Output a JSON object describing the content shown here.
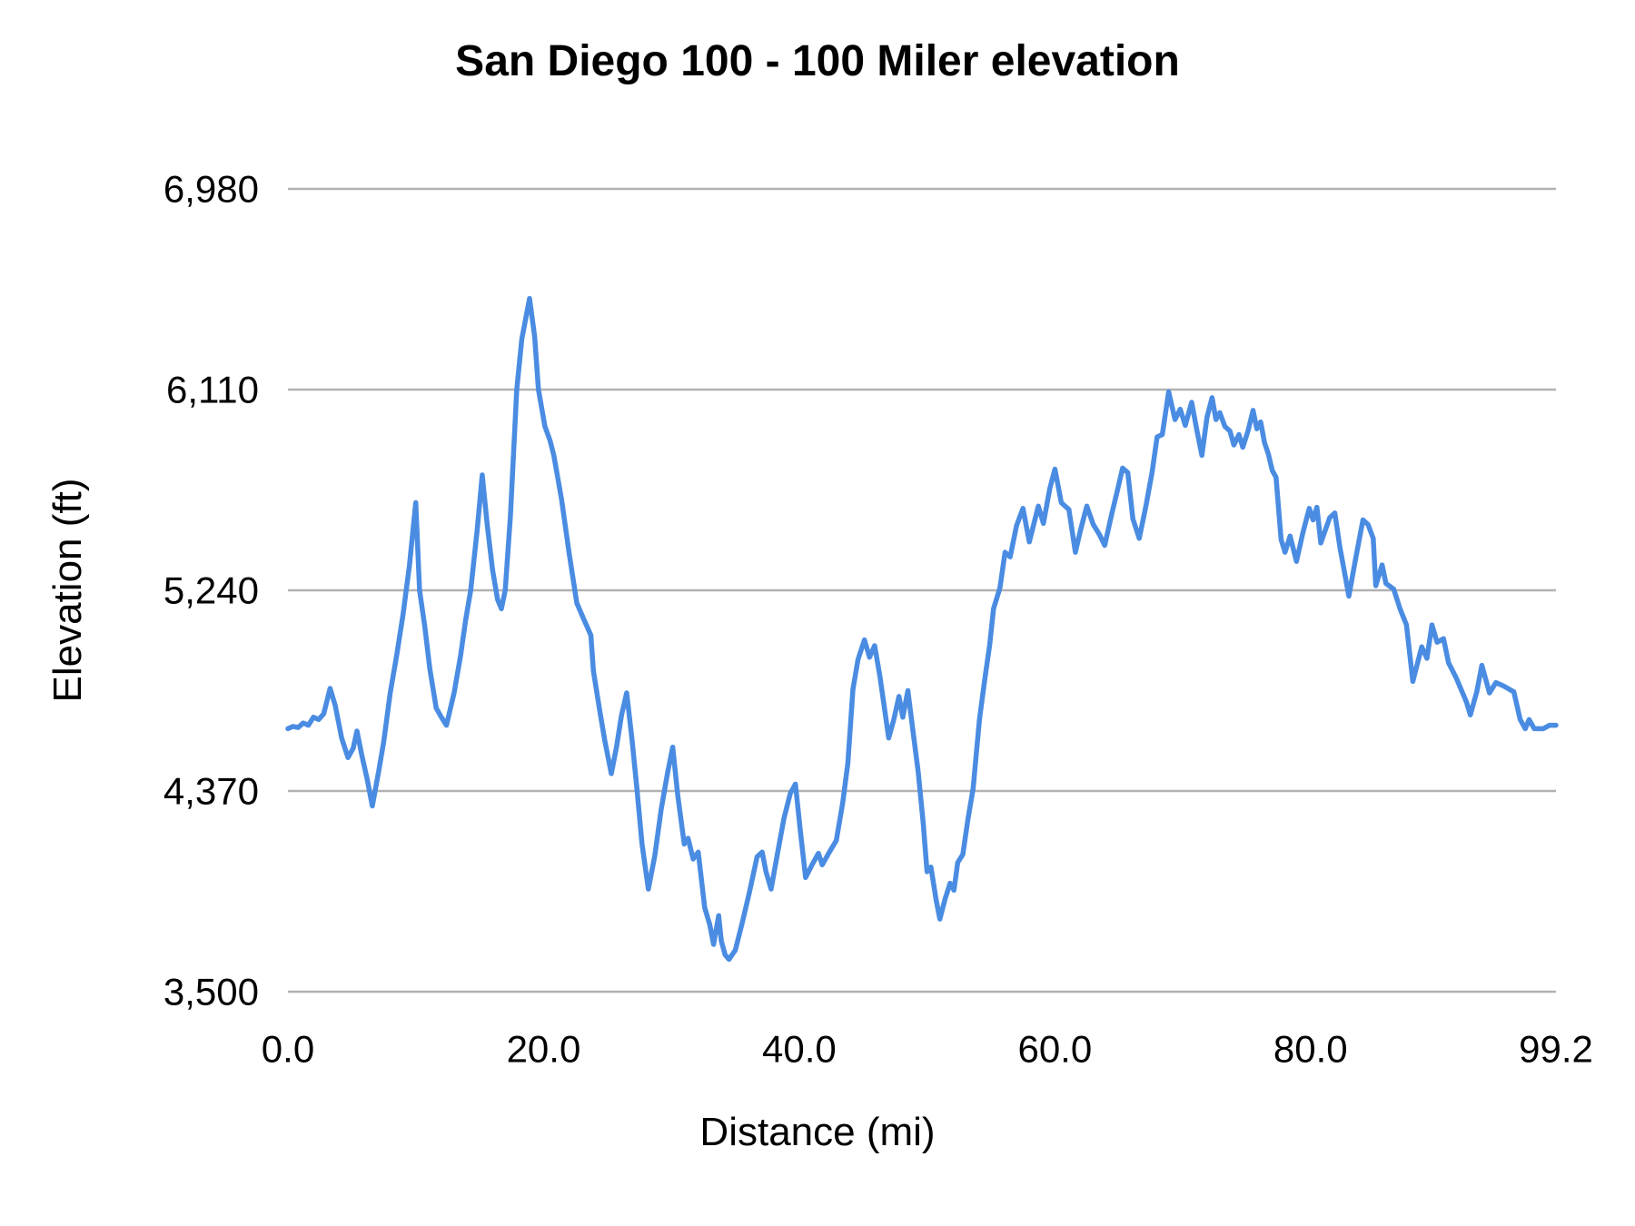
{
  "chart": {
    "title": "San Diego 100 - 100 Miler elevation",
    "xlabel": "Distance (mi)",
    "ylabel": "Elevation (ft)"
  },
  "chart_data": {
    "type": "line",
    "title": "San Diego 100 - 100 Miler elevation",
    "xlabel": "Distance (mi)",
    "ylabel": "Elevation (ft)",
    "xlim": [
      0,
      99.2
    ],
    "ylim": [
      3500,
      6980
    ],
    "grid": "horizontal",
    "legend": "none",
    "line_color": "#4a8ce2",
    "gridline_color": "#b2b2b2",
    "x_ticks": [
      0,
      20,
      40,
      60,
      80,
      99.2
    ],
    "x_tick_labels": [
      "0.0",
      "20.0",
      "40.0",
      "60.0",
      "80.0",
      "99.2"
    ],
    "y_ticks": [
      3500,
      4370,
      5240,
      6110,
      6980
    ],
    "y_tick_labels": [
      "3,500",
      "4,370",
      "5,240",
      "6,110",
      "6,980"
    ],
    "series": [
      {
        "name": "Elevation",
        "points": [
          [
            0,
            4640
          ],
          [
            0.4,
            4650
          ],
          [
            0.8,
            4645
          ],
          [
            1.2,
            4665
          ],
          [
            1.6,
            4655
          ],
          [
            2.0,
            4690
          ],
          [
            2.4,
            4680
          ],
          [
            2.8,
            4705
          ],
          [
            3.3,
            4815
          ],
          [
            3.7,
            4740
          ],
          [
            4.2,
            4600
          ],
          [
            4.7,
            4515
          ],
          [
            5.1,
            4555
          ],
          [
            5.4,
            4630
          ],
          [
            5.8,
            4520
          ],
          [
            6.2,
            4420
          ],
          [
            6.6,
            4305
          ],
          [
            7.1,
            4455
          ],
          [
            7.5,
            4585
          ],
          [
            8.0,
            4795
          ],
          [
            8.5,
            4955
          ],
          [
            9.0,
            5135
          ],
          [
            9.5,
            5345
          ],
          [
            10.0,
            5620
          ],
          [
            10.3,
            5240
          ],
          [
            10.7,
            5085
          ],
          [
            11.1,
            4900
          ],
          [
            11.6,
            4730
          ],
          [
            12.0,
            4690
          ],
          [
            12.4,
            4655
          ],
          [
            13.0,
            4795
          ],
          [
            13.5,
            4955
          ],
          [
            13.9,
            5110
          ],
          [
            14.3,
            5240
          ],
          [
            14.8,
            5500
          ],
          [
            15.2,
            5740
          ],
          [
            15.6,
            5520
          ],
          [
            16.0,
            5330
          ],
          [
            16.4,
            5200
          ],
          [
            16.7,
            5160
          ],
          [
            17.0,
            5240
          ],
          [
            17.4,
            5560
          ],
          [
            17.9,
            6110
          ],
          [
            18.3,
            6330
          ],
          [
            18.9,
            6505
          ],
          [
            19.3,
            6340
          ],
          [
            19.6,
            6110
          ],
          [
            20.1,
            5950
          ],
          [
            20.5,
            5890
          ],
          [
            20.8,
            5825
          ],
          [
            21.4,
            5635
          ],
          [
            22.0,
            5400
          ],
          [
            22.6,
            5185
          ],
          [
            23.1,
            5120
          ],
          [
            23.7,
            5045
          ],
          [
            23.9,
            4890
          ],
          [
            24.4,
            4715
          ],
          [
            24.8,
            4585
          ],
          [
            25.3,
            4445
          ],
          [
            25.7,
            4560
          ],
          [
            26.1,
            4700
          ],
          [
            26.5,
            4795
          ],
          [
            26.9,
            4600
          ],
          [
            27.3,
            4380
          ],
          [
            27.7,
            4140
          ],
          [
            28.2,
            3945
          ],
          [
            28.7,
            4090
          ],
          [
            29.2,
            4290
          ],
          [
            29.7,
            4450
          ],
          [
            30.1,
            4560
          ],
          [
            30.5,
            4350
          ],
          [
            31.0,
            4140
          ],
          [
            31.3,
            4165
          ],
          [
            31.7,
            4075
          ],
          [
            32.1,
            4105
          ],
          [
            32.6,
            3865
          ],
          [
            33.0,
            3790
          ],
          [
            33.3,
            3705
          ],
          [
            33.7,
            3830
          ],
          [
            33.9,
            3720
          ],
          [
            34.2,
            3660
          ],
          [
            34.5,
            3640
          ],
          [
            35.0,
            3680
          ],
          [
            35.5,
            3790
          ],
          [
            36.1,
            3930
          ],
          [
            36.7,
            4085
          ],
          [
            37.1,
            4105
          ],
          [
            37.4,
            4020
          ],
          [
            37.8,
            3945
          ],
          [
            38.3,
            4100
          ],
          [
            38.8,
            4250
          ],
          [
            39.3,
            4360
          ],
          [
            39.7,
            4400
          ],
          [
            40.1,
            4190
          ],
          [
            40.5,
            3995
          ],
          [
            41.0,
            4050
          ],
          [
            41.5,
            4100
          ],
          [
            41.8,
            4050
          ],
          [
            42.3,
            4100
          ],
          [
            42.9,
            4155
          ],
          [
            43.4,
            4320
          ],
          [
            43.8,
            4490
          ],
          [
            44.2,
            4810
          ],
          [
            44.6,
            4940
          ],
          [
            45.1,
            5025
          ],
          [
            45.5,
            4950
          ],
          [
            45.9,
            5000
          ],
          [
            46.3,
            4870
          ],
          [
            47.0,
            4600
          ],
          [
            47.4,
            4680
          ],
          [
            47.8,
            4780
          ],
          [
            48.1,
            4690
          ],
          [
            48.5,
            4805
          ],
          [
            48.9,
            4630
          ],
          [
            49.3,
            4455
          ],
          [
            49.7,
            4230
          ],
          [
            50.0,
            4020
          ],
          [
            50.3,
            4040
          ],
          [
            50.7,
            3900
          ],
          [
            51.0,
            3815
          ],
          [
            51.4,
            3900
          ],
          [
            51.8,
            3970
          ],
          [
            52.1,
            3940
          ],
          [
            52.4,
            4060
          ],
          [
            52.8,
            4095
          ],
          [
            53.2,
            4250
          ],
          [
            53.6,
            4380
          ],
          [
            54.1,
            4680
          ],
          [
            54.5,
            4850
          ],
          [
            54.9,
            5005
          ],
          [
            55.2,
            5160
          ],
          [
            55.7,
            5250
          ],
          [
            56.1,
            5405
          ],
          [
            56.5,
            5385
          ],
          [
            57.0,
            5520
          ],
          [
            57.5,
            5595
          ],
          [
            58.0,
            5450
          ],
          [
            58.7,
            5605
          ],
          [
            59.1,
            5530
          ],
          [
            59.6,
            5680
          ],
          [
            60.0,
            5765
          ],
          [
            60.5,
            5620
          ],
          [
            61.1,
            5590
          ],
          [
            61.6,
            5405
          ],
          [
            62.0,
            5500
          ],
          [
            62.5,
            5605
          ],
          [
            63.0,
            5525
          ],
          [
            63.5,
            5480
          ],
          [
            63.9,
            5435
          ],
          [
            64.4,
            5560
          ],
          [
            64.9,
            5675
          ],
          [
            65.3,
            5770
          ],
          [
            65.7,
            5750
          ],
          [
            66.1,
            5550
          ],
          [
            66.6,
            5465
          ],
          [
            67.1,
            5600
          ],
          [
            67.6,
            5750
          ],
          [
            68.0,
            5905
          ],
          [
            68.4,
            5915
          ],
          [
            68.9,
            6100
          ],
          [
            69.4,
            5980
          ],
          [
            69.8,
            6025
          ],
          [
            70.2,
            5955
          ],
          [
            70.7,
            6055
          ],
          [
            71.1,
            5935
          ],
          [
            71.5,
            5825
          ],
          [
            71.9,
            5990
          ],
          [
            72.3,
            6075
          ],
          [
            72.6,
            5980
          ],
          [
            72.9,
            6010
          ],
          [
            73.3,
            5950
          ],
          [
            73.7,
            5930
          ],
          [
            74.0,
            5870
          ],
          [
            74.4,
            5915
          ],
          [
            74.7,
            5860
          ],
          [
            75.1,
            5930
          ],
          [
            75.5,
            6020
          ],
          [
            75.8,
            5940
          ],
          [
            76.1,
            5970
          ],
          [
            76.4,
            5880
          ],
          [
            76.7,
            5830
          ],
          [
            77.0,
            5760
          ],
          [
            77.3,
            5730
          ],
          [
            77.7,
            5460
          ],
          [
            78.0,
            5405
          ],
          [
            78.4,
            5475
          ],
          [
            78.9,
            5365
          ],
          [
            79.4,
            5490
          ],
          [
            79.9,
            5595
          ],
          [
            80.2,
            5545
          ],
          [
            80.5,
            5600
          ],
          [
            80.8,
            5445
          ],
          [
            81.5,
            5555
          ],
          [
            81.9,
            5575
          ],
          [
            82.3,
            5425
          ],
          [
            83.0,
            5215
          ],
          [
            83.5,
            5370
          ],
          [
            84.1,
            5545
          ],
          [
            84.5,
            5525
          ],
          [
            84.9,
            5465
          ],
          [
            85.1,
            5260
          ],
          [
            85.6,
            5350
          ],
          [
            85.9,
            5270
          ],
          [
            86.5,
            5245
          ],
          [
            87.0,
            5160
          ],
          [
            87.5,
            5090
          ],
          [
            88.0,
            4845
          ],
          [
            88.7,
            4995
          ],
          [
            89.1,
            4945
          ],
          [
            89.5,
            5090
          ],
          [
            89.9,
            5015
          ],
          [
            90.4,
            5030
          ],
          [
            90.8,
            4925
          ],
          [
            91.4,
            4860
          ],
          [
            92.2,
            4755
          ],
          [
            92.5,
            4700
          ],
          [
            93.0,
            4800
          ],
          [
            93.4,
            4915
          ],
          [
            94.0,
            4795
          ],
          [
            94.5,
            4840
          ],
          [
            95.1,
            4825
          ],
          [
            95.9,
            4800
          ],
          [
            96.4,
            4680
          ],
          [
            96.8,
            4640
          ],
          [
            97.1,
            4680
          ],
          [
            97.5,
            4640
          ],
          [
            98.2,
            4640
          ],
          [
            98.7,
            4655
          ],
          [
            99.2,
            4655
          ]
        ]
      }
    ]
  }
}
